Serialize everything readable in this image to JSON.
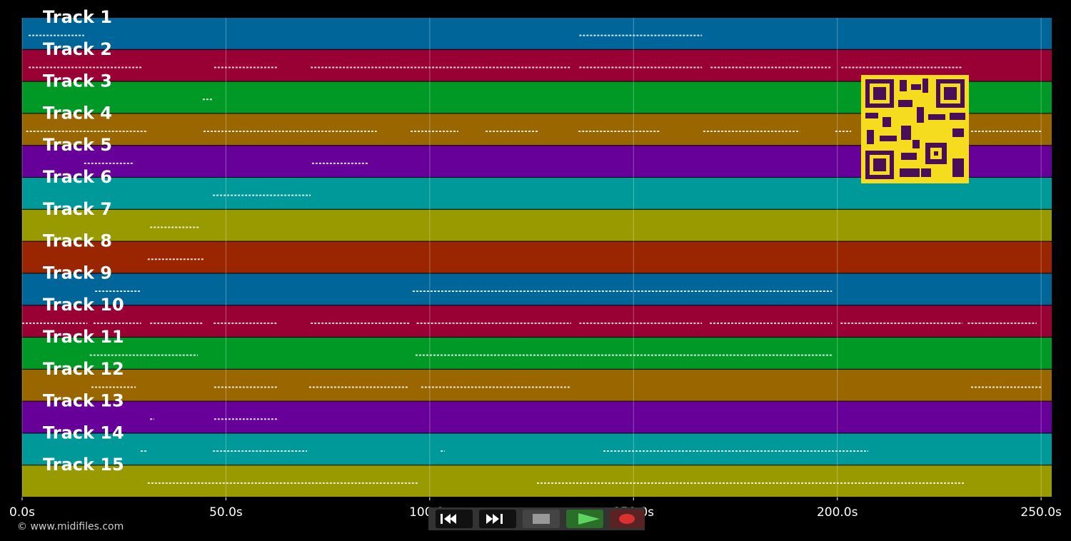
{
  "timeline": {
    "xlim": [
      0,
      252.6
    ],
    "xticks": [
      {
        "value": 0,
        "label": "0.0s"
      },
      {
        "value": 50,
        "label": "50.0s"
      },
      {
        "value": 100,
        "label": "100.0s"
      },
      {
        "value": 150,
        "label": "150.0s"
      },
      {
        "value": 200,
        "label": "200.0s"
      },
      {
        "value": 250,
        "label": "250.0s"
      }
    ],
    "tracks": [
      {
        "label": "Track 1",
        "color": "#00669a",
        "notes": [
          [
            1.6,
            15.2
          ],
          [
            136.7,
            166.8
          ]
        ]
      },
      {
        "label": "Track 2",
        "color": "#990033",
        "notes": [
          [
            1.6,
            29.3
          ],
          [
            47.1,
            62.5
          ],
          [
            70.8,
            134.7
          ],
          [
            136.7,
            166.8
          ],
          [
            168.9,
            198.7
          ],
          [
            201,
            230.7
          ]
        ]
      },
      {
        "label": "Track 3",
        "color": "#009926",
        "notes": [
          [
            44.3,
            46.8
          ]
        ]
      },
      {
        "label": "Track 4",
        "color": "#996600",
        "notes": [
          [
            1,
            30.8
          ],
          [
            44.5,
            87
          ],
          [
            95.3,
            107
          ],
          [
            113.7,
            126.8
          ],
          [
            136.5,
            156.6
          ],
          [
            167.1,
            190.8
          ],
          [
            199.5,
            203.4
          ],
          [
            232.8,
            250
          ]
        ]
      },
      {
        "label": "Track 5",
        "color": "#660099",
        "notes": [
          [
            15.2,
            27.5
          ],
          [
            71.1,
            85
          ]
        ]
      },
      {
        "label": "Track 6",
        "color": "#009999",
        "notes": [
          [
            46.8,
            70.8
          ]
        ]
      },
      {
        "label": "Track 7",
        "color": "#999900",
        "notes": [
          [
            31.4,
            43.6
          ]
        ]
      },
      {
        "label": "Track 8",
        "color": "#992600",
        "notes": [
          [
            30.8,
            44.5
          ]
        ]
      },
      {
        "label": "Track 9",
        "color": "#00669a",
        "notes": [
          [
            17.9,
            28.9
          ],
          [
            95.8,
            198.7
          ]
        ]
      },
      {
        "label": "Track 10",
        "color": "#990033",
        "notes": [
          [
            0,
            16
          ],
          [
            17.5,
            29.2
          ],
          [
            31.4,
            44.5
          ],
          [
            47,
            62.5
          ],
          [
            70.8,
            95
          ],
          [
            96.8,
            134.7
          ],
          [
            136.7,
            166.8
          ],
          [
            168.7,
            198.7
          ],
          [
            200.8,
            230.7
          ],
          [
            232,
            248.9
          ]
        ]
      },
      {
        "label": "Track 11",
        "color": "#009926",
        "notes": [
          [
            16.6,
            43.1
          ],
          [
            96.5,
            199
          ]
        ]
      },
      {
        "label": "Track 12",
        "color": "#996600",
        "notes": [
          [
            17,
            27.9
          ],
          [
            47.1,
            62.5
          ],
          [
            70.4,
            94.8
          ],
          [
            97.9,
            134.7
          ],
          [
            232.8,
            250
          ]
        ]
      },
      {
        "label": "Track 13",
        "color": "#660099",
        "notes": [
          [
            31.4,
            32.4
          ],
          [
            47.1,
            62.9
          ]
        ]
      },
      {
        "label": "Track 14",
        "color": "#009999",
        "notes": [
          [
            29.1,
            30.7
          ],
          [
            46.8,
            69.9
          ],
          [
            102.7,
            103.7
          ],
          [
            142.6,
            207.6
          ]
        ]
      },
      {
        "label": "Track 15",
        "color": "#999900",
        "notes": [
          [
            30.8,
            97
          ],
          [
            126.3,
            231.4
          ]
        ]
      }
    ]
  },
  "footer": {
    "copyright": "© www.midifiles.com"
  }
}
